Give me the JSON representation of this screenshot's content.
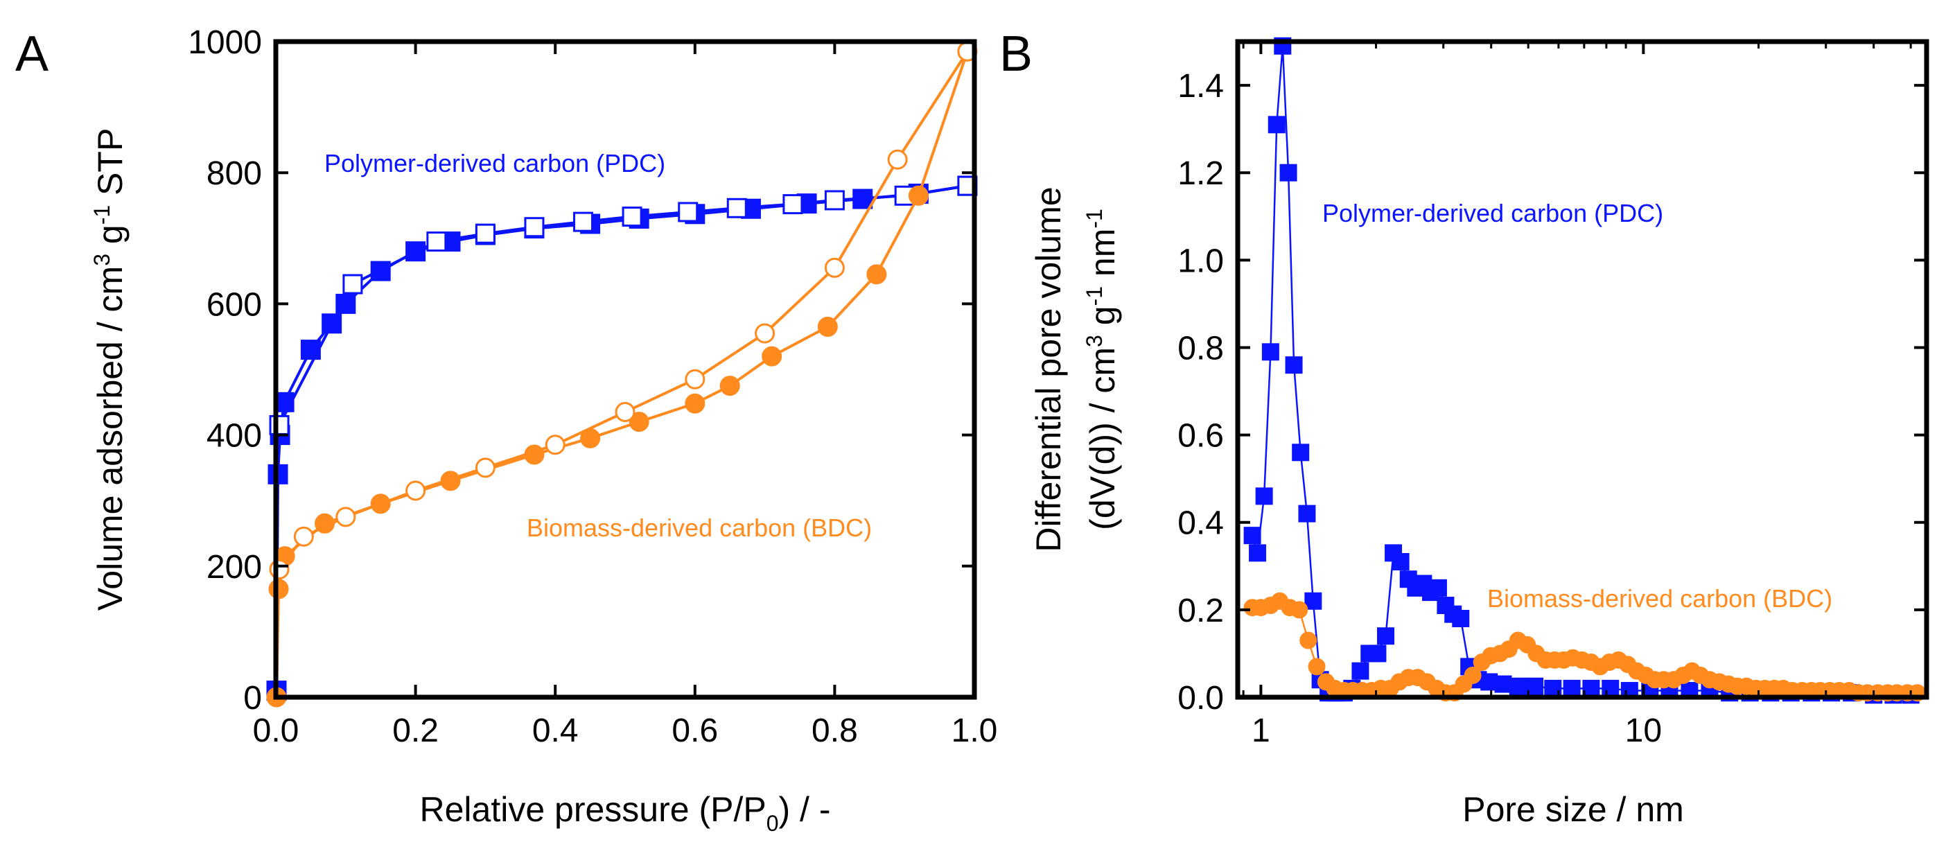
{
  "colors": {
    "pdc": "#0a14ff",
    "bdc": "#ff8a1e",
    "axis": "#000000",
    "background": "#ffffff"
  },
  "chart_data": [
    {
      "id": "panelA",
      "panel_label": "A",
      "type": "scatter",
      "title": "",
      "xlabel": {
        "main": "Relative pressure (P/P",
        "sub": "0",
        "tail": ") / -"
      },
      "ylabel": {
        "main": "Volume adsorbed / cm",
        "sup1": "3",
        "mid": " g",
        "sup2": "-1",
        "tail": " STP"
      },
      "xlim": [
        0,
        1.0
      ],
      "ylim": [
        0,
        1000
      ],
      "xticks": [
        0.0,
        0.2,
        0.4,
        0.6,
        0.8,
        1.0
      ],
      "xtick_labels": [
        "0.0",
        "0.2",
        "0.4",
        "0.6",
        "0.8",
        "1.0"
      ],
      "yticks": [
        0,
        200,
        400,
        600,
        800,
        1000
      ],
      "ytick_labels": [
        "0",
        "200",
        "400",
        "600",
        "800",
        "1000"
      ],
      "grid": false,
      "annotations": [
        {
          "text": "Polymer-derived carbon (PDC)",
          "x": 0.07,
          "y": 810,
          "color": "pdc"
        },
        {
          "text": "Biomass-derived carbon (BDC)",
          "x": 0.36,
          "y": 250,
          "color": "bdc"
        }
      ],
      "series": [
        {
          "name": "PDC adsorption",
          "marker": "square",
          "filled": true,
          "color": "pdc",
          "x": [
            0.001,
            0.003,
            0.006,
            0.012,
            0.05,
            0.08,
            0.1,
            0.15,
            0.2,
            0.25,
            0.3,
            0.37,
            0.45,
            0.52,
            0.6,
            0.68,
            0.76,
            0.84,
            0.92,
            0.99
          ],
          "y": [
            10,
            340,
            400,
            450,
            530,
            570,
            600,
            650,
            680,
            695,
            705,
            715,
            722,
            730,
            737,
            745,
            753,
            760,
            768,
            780
          ]
        },
        {
          "name": "PDC desorption",
          "marker": "square",
          "filled": false,
          "color": "pdc",
          "x": [
            0.99,
            0.9,
            0.8,
            0.74,
            0.66,
            0.59,
            0.51,
            0.44,
            0.37,
            0.3,
            0.23,
            0.11,
            0.005
          ],
          "y": [
            780,
            765,
            758,
            752,
            746,
            740,
            733,
            725,
            717,
            707,
            695,
            630,
            415
          ]
        },
        {
          "name": "BDC adsorption",
          "marker": "circle",
          "filled": true,
          "color": "bdc",
          "x": [
            0.001,
            0.004,
            0.013,
            0.07,
            0.15,
            0.25,
            0.37,
            0.45,
            0.52,
            0.6,
            0.65,
            0.71,
            0.79,
            0.86,
            0.92,
            0.99
          ],
          "y": [
            0,
            165,
            215,
            265,
            295,
            330,
            370,
            395,
            420,
            448,
            475,
            520,
            565,
            645,
            765,
            985
          ]
        },
        {
          "name": "BDC desorption",
          "marker": "circle",
          "filled": false,
          "color": "bdc",
          "x": [
            0.99,
            0.89,
            0.8,
            0.7,
            0.6,
            0.5,
            0.4,
            0.3,
            0.2,
            0.1,
            0.04,
            0.005
          ],
          "y": [
            985,
            820,
            655,
            555,
            485,
            435,
            385,
            350,
            315,
            275,
            245,
            195
          ]
        }
      ]
    },
    {
      "id": "panelB",
      "panel_label": "B",
      "type": "scatter",
      "title": "",
      "xscale": "log",
      "xlabel": {
        "main": "Pore size / nm"
      },
      "ylabel": {
        "line1": "Differential pore volume",
        "line2": {
          "main": "(dV(d)) / cm",
          "sup1": "3",
          "mid": " g",
          "sup2": "-1",
          "mid2": " nm",
          "sup3": "-1"
        }
      },
      "xlim": [
        0.87,
        55
      ],
      "ylim": [
        0,
        1.5
      ],
      "xticks_major": [
        1,
        10
      ],
      "xtick_labels": [
        "1",
        "10"
      ],
      "xticks_minor": [
        0.9,
        2,
        3,
        4,
        5,
        6,
        7,
        8,
        9,
        20,
        30,
        40,
        50
      ],
      "yticks": [
        0.0,
        0.2,
        0.4,
        0.6,
        0.8,
        1.0,
        1.2,
        1.4
      ],
      "ytick_labels": [
        "0.0",
        "0.2",
        "0.4",
        "0.6",
        "0.8",
        "1.0",
        "1.2",
        "1.4"
      ],
      "grid": false,
      "annotations": [
        {
          "text": "Polymer-derived carbon (PDC)",
          "x": 1.42,
          "y": 1.095,
          "color": "pdc"
        },
        {
          "text": "Biomass-derived carbon (BDC)",
          "x": 3.95,
          "y": 0.205,
          "color": "bdc"
        }
      ],
      "series": [
        {
          "name": "PDC",
          "marker": "square",
          "filled": true,
          "color": "pdc",
          "x": [
            0.95,
            0.98,
            1.02,
            1.06,
            1.1,
            1.14,
            1.18,
            1.22,
            1.27,
            1.32,
            1.37,
            1.43,
            1.5,
            1.57,
            1.65,
            1.73,
            1.82,
            1.92,
            2.02,
            2.12,
            2.22,
            2.32,
            2.43,
            2.54,
            2.66,
            2.78,
            2.91,
            3.04,
            3.18,
            3.33,
            3.5,
            3.7,
            3.95,
            4.3,
            4.7,
            5.2,
            5.8,
            6.5,
            7.3,
            8.2,
            9.2,
            10.4,
            11.7,
            13.2,
            14.9,
            16.8,
            19,
            21.5,
            24.3,
            27.5,
            31,
            35,
            40,
            45,
            50
          ],
          "y": [
            0.37,
            0.33,
            0.46,
            0.79,
            1.31,
            1.49,
            1.2,
            0.76,
            0.56,
            0.42,
            0.22,
            0.04,
            0.01,
            0.01,
            0.01,
            0.02,
            0.06,
            0.1,
            0.1,
            0.14,
            0.33,
            0.31,
            0.27,
            0.25,
            0.26,
            0.24,
            0.25,
            0.21,
            0.19,
            0.18,
            0.07,
            0.04,
            0.035,
            0.03,
            0.025,
            0.025,
            0.02,
            0.02,
            0.02,
            0.02,
            0.015,
            0.015,
            0.015,
            0.015,
            0.015,
            0.01,
            0.01,
            0.01,
            0.01,
            0.01,
            0.01,
            0.01,
            0.005,
            0.005,
            0.005
          ]
        },
        {
          "name": "BDC",
          "marker": "circle",
          "filled": true,
          "color": "bdc",
          "x": [
            0.95,
            1.0,
            1.06,
            1.12,
            1.19,
            1.26,
            1.33,
            1.4,
            1.48,
            1.56,
            1.65,
            1.74,
            1.84,
            1.95,
            2.06,
            2.18,
            2.3,
            2.43,
            2.57,
            2.72,
            2.88,
            3.04,
            3.21,
            3.39,
            3.58,
            3.78,
            3.99,
            4.22,
            4.45,
            4.7,
            4.97,
            5.25,
            5.55,
            5.86,
            6.19,
            6.54,
            6.91,
            7.3,
            7.71,
            8.15,
            8.61,
            9.1,
            9.61,
            10.15,
            10.7,
            11.3,
            12,
            12.7,
            13.4,
            14.1,
            14.9,
            15.8,
            16.7,
            17.6,
            18.6,
            19.7,
            20.8,
            22,
            23.2,
            24.5,
            26,
            27.5,
            29,
            30.7,
            32.5,
            34.5,
            36.5,
            38.5,
            41,
            43.5,
            46,
            49,
            52
          ],
          "y": [
            0.205,
            0.205,
            0.21,
            0.22,
            0.205,
            0.2,
            0.13,
            0.07,
            0.035,
            0.02,
            0.015,
            0.015,
            0.015,
            0.015,
            0.02,
            0.02,
            0.035,
            0.045,
            0.045,
            0.035,
            0.02,
            0.01,
            0.01,
            0.03,
            0.05,
            0.08,
            0.095,
            0.1,
            0.11,
            0.13,
            0.12,
            0.1,
            0.085,
            0.085,
            0.085,
            0.09,
            0.085,
            0.08,
            0.07,
            0.08,
            0.085,
            0.075,
            0.06,
            0.05,
            0.04,
            0.04,
            0.04,
            0.05,
            0.06,
            0.05,
            0.04,
            0.035,
            0.03,
            0.025,
            0.025,
            0.02,
            0.02,
            0.02,
            0.02,
            0.015,
            0.015,
            0.015,
            0.015,
            0.015,
            0.015,
            0.015,
            0.01,
            0.01,
            0.01,
            0.01,
            0.01,
            0.01,
            0.01
          ]
        }
      ]
    }
  ]
}
